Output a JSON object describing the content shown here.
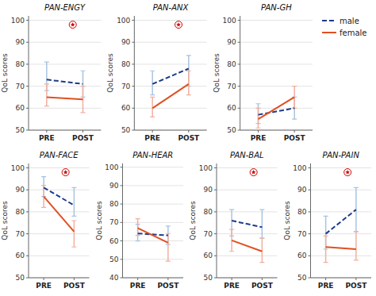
{
  "chart_data": [
    {
      "type": "line",
      "title": "PAN-ENGY",
      "categories": [
        "PRE",
        "POST"
      ],
      "y_label": "QoL scores",
      "ylim": [
        50,
        102
      ],
      "yticks": [
        50,
        60,
        70,
        80,
        90,
        100
      ],
      "grid": true,
      "series": [
        {
          "name": "male",
          "color": "#1e3a8a",
          "line_style": "dashed",
          "values": [
            73,
            71
          ],
          "errors": [
            [
              5,
              8
            ],
            [
              6,
              6
            ]
          ],
          "error_color": "#a8c4e0"
        },
        {
          "name": "female",
          "color": "#e05020",
          "line_style": "solid",
          "values": [
            65,
            64
          ],
          "errors": [
            [
              4,
              6
            ],
            [
              6,
              6
            ]
          ],
          "error_color": "#f0b0a0"
        }
      ],
      "annotations": [
        {
          "x": 0.72,
          "y": 98,
          "marker": "circled-star",
          "color": "#cc0000"
        }
      ]
    },
    {
      "type": "line",
      "title": "PAN-ANX",
      "categories": [
        "PRE",
        "POST"
      ],
      "y_label": "QoL scores",
      "ylim": [
        50,
        102
      ],
      "yticks": [
        50,
        60,
        70,
        80,
        90,
        100
      ],
      "grid": true,
      "series": [
        {
          "name": "male",
          "color": "#1e3a8a",
          "line_style": "dashed",
          "values": [
            71,
            78
          ],
          "errors": [
            [
              5,
              6
            ],
            [
              8,
              6
            ]
          ],
          "error_color": "#a8c4e0"
        },
        {
          "name": "female",
          "color": "#e05020",
          "line_style": "solid",
          "values": [
            60,
            71
          ],
          "errors": [
            [
              4,
              5
            ],
            [
              5,
              6
            ]
          ],
          "error_color": "#f0b0a0"
        }
      ],
      "annotations": [
        {
          "x": 0.72,
          "y": 98,
          "marker": "circled-star",
          "color": "#cc0000"
        }
      ]
    },
    {
      "type": "line",
      "title": "PAN-GH",
      "categories": [
        "PRE",
        "POST"
      ],
      "y_label": "QoL scores",
      "ylim": [
        50,
        102
      ],
      "yticks": [
        50,
        60,
        70,
        80,
        90,
        100
      ],
      "grid": true,
      "series": [
        {
          "name": "male",
          "color": "#1e3a8a",
          "line_style": "dashed",
          "values": [
            57,
            60
          ],
          "errors": [
            [
              4,
              5
            ],
            [
              5,
              5
            ]
          ],
          "error_color": "#a8c4e0"
        },
        {
          "name": "female",
          "color": "#e05020",
          "line_style": "solid",
          "values": [
            55,
            65
          ],
          "errors": [
            [
              4,
              5
            ],
            [
              5,
              5
            ]
          ],
          "error_color": "#f0b0a0"
        }
      ]
    },
    {
      "type": "line",
      "title": "PAN-FACE",
      "categories": [
        "PRE",
        "POST"
      ],
      "y_label": "QoL scores",
      "ylim": [
        50,
        102
      ],
      "yticks": [
        50,
        60,
        70,
        80,
        90,
        100
      ],
      "grid": true,
      "series": [
        {
          "name": "male",
          "color": "#1e3a8a",
          "line_style": "dashed",
          "values": [
            91,
            83
          ],
          "errors": [
            [
              4,
              5
            ],
            [
              5,
              8
            ]
          ],
          "error_color": "#a8c4e0"
        },
        {
          "name": "female",
          "color": "#e05020",
          "line_style": "solid",
          "values": [
            87,
            71
          ],
          "errors": [
            [
              5,
              5
            ],
            [
              7,
              5
            ]
          ],
          "error_color": "#f0b0a0"
        }
      ],
      "annotations": [
        {
          "x": 0.72,
          "y": 98,
          "marker": "circled-star",
          "color": "#cc0000"
        }
      ]
    },
    {
      "type": "line",
      "title": "PAN-HEAR",
      "categories": [
        "PRE",
        "POST"
      ],
      "y_label": "QoL scores",
      "ylim": [
        40,
        102
      ],
      "yticks": [
        40,
        50,
        60,
        70,
        80,
        90,
        100
      ],
      "grid": true,
      "series": [
        {
          "name": "male",
          "color": "#1e3a8a",
          "line_style": "dashed",
          "values": [
            64,
            63
          ],
          "errors": [
            [
              4,
              5
            ],
            [
              5,
              5
            ]
          ],
          "error_color": "#a8c4e0"
        },
        {
          "name": "female",
          "color": "#e05020",
          "line_style": "solid",
          "values": [
            67,
            59
          ],
          "errors": [
            [
              4,
              5
            ],
            [
              10,
              5
            ]
          ],
          "error_color": "#f0b0a0"
        }
      ]
    },
    {
      "type": "line",
      "title": "PAN-BAL",
      "categories": [
        "PRE",
        "POST"
      ],
      "y_label": "QoL scores",
      "ylim": [
        50,
        102
      ],
      "yticks": [
        50,
        60,
        70,
        80,
        90,
        100
      ],
      "grid": true,
      "series": [
        {
          "name": "male",
          "color": "#1e3a8a",
          "line_style": "dashed",
          "values": [
            76,
            73
          ],
          "errors": [
            [
              7,
              5
            ],
            [
              5,
              8
            ]
          ],
          "error_color": "#a8c4e0"
        },
        {
          "name": "female",
          "color": "#e05020",
          "line_style": "solid",
          "values": [
            67,
            62
          ],
          "errors": [
            [
              5,
              5
            ],
            [
              5,
              6
            ]
          ],
          "error_color": "#f0b0a0"
        }
      ],
      "annotations": [
        {
          "x": 0.72,
          "y": 98,
          "marker": "circled-star",
          "color": "#cc0000"
        }
      ]
    },
    {
      "type": "line",
      "title": "PAN-PAIN",
      "categories": [
        "PRE",
        "POST"
      ],
      "y_label": "QoL scores",
      "ylim": [
        50,
        102
      ],
      "yticks": [
        50,
        60,
        70,
        80,
        90,
        100
      ],
      "grid": true,
      "legend": "upper right",
      "series": [
        {
          "name": "male",
          "color": "#1e3a8a",
          "line_style": "dashed",
          "values": [
            70,
            81
          ],
          "errors": [
            [
              7,
              8
            ],
            [
              10,
              10
            ]
          ],
          "error_color": "#a8c4e0"
        },
        {
          "name": "female",
          "color": "#e05020",
          "line_style": "solid",
          "values": [
            64,
            63
          ],
          "errors": [
            [
              7,
              5
            ],
            [
              5,
              8
            ]
          ],
          "error_color": "#f0b0a0"
        }
      ],
      "annotations": [
        {
          "x": 0.72,
          "y": 98,
          "marker": "circled-star",
          "color": "#cc0000"
        }
      ]
    }
  ]
}
